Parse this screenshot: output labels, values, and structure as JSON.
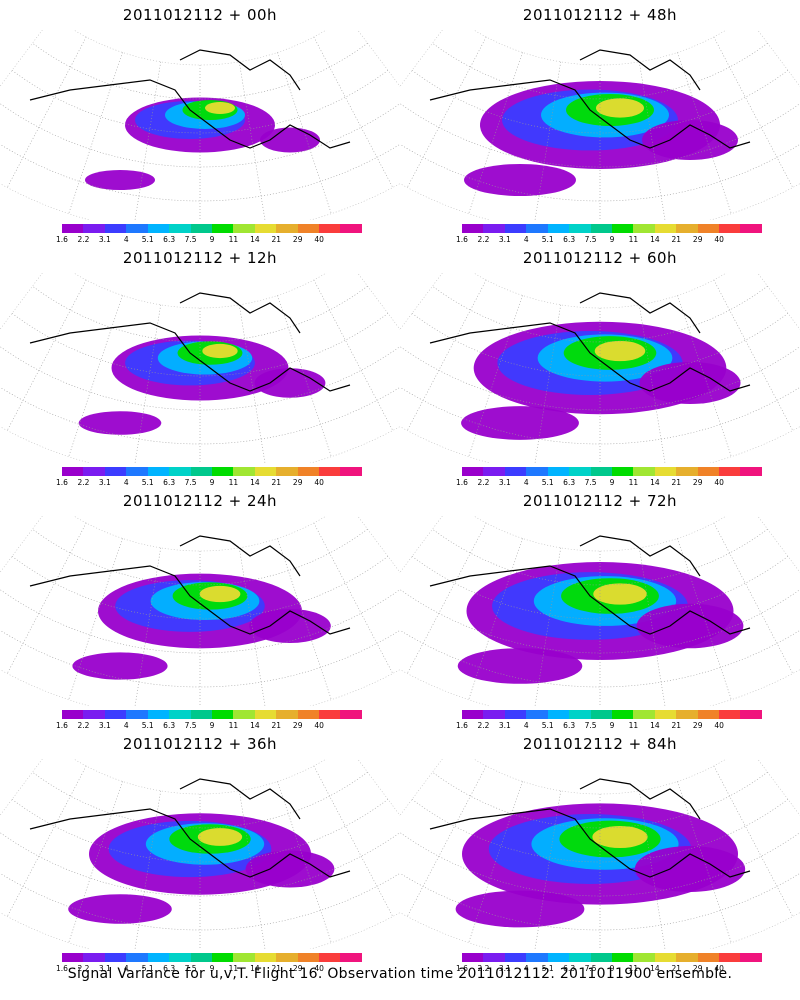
{
  "panels": [
    {
      "title": "2011012112 + 00h",
      "intensity": 0.25
    },
    {
      "title": "2011012112 + 48h",
      "intensity": 0.75
    },
    {
      "title": "2011012112 + 12h",
      "intensity": 0.4
    },
    {
      "title": "2011012112 + 60h",
      "intensity": 0.82
    },
    {
      "title": "2011012112 + 24h",
      "intensity": 0.55
    },
    {
      "title": "2011012112 + 72h",
      "intensity": 0.9
    },
    {
      "title": "2011012112 + 36h",
      "intensity": 0.65
    },
    {
      "title": "2011012112 + 84h",
      "intensity": 0.95
    }
  ],
  "colorbar": {
    "labels": [
      "1.6",
      "2.2",
      "3.1",
      "4",
      "5.1",
      "6.3",
      "7.5",
      "9",
      "11",
      "14",
      "21",
      "29",
      "40"
    ],
    "colors": [
      "#9900cc",
      "#7a1cf0",
      "#3c3cff",
      "#1e78ff",
      "#00b4ff",
      "#00d2c8",
      "#00c88c",
      "#00dc00",
      "#a0e632",
      "#e6dc32",
      "#e6af2d",
      "#f08228",
      "#fa3c3c",
      "#f0147d"
    ]
  },
  "footer": "Signal Variance for u,v,T. Flight 16. Observation time 2011012112. 2011011900 ensemble."
}
